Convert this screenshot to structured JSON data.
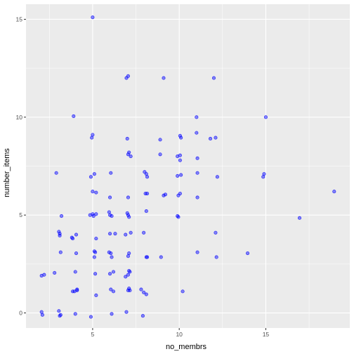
{
  "chart_data": {
    "type": "scatter",
    "title": "",
    "xlabel": "no_membrs",
    "ylabel": "number_items",
    "xlim": [
      1.15,
      19.85
    ],
    "ylim": [
      -0.77,
      15.77
    ],
    "x_ticks": [
      5,
      10,
      15
    ],
    "y_ticks": [
      0,
      5,
      10,
      15
    ],
    "grid": true,
    "legend": "none",
    "panel_color": "#ebebeb",
    "grid_color": "#ffffff",
    "point_color": "#0000ff",
    "points": [
      [
        5,
        15.1
      ],
      [
        7.05,
        12.1
      ],
      [
        6.95,
        12
      ],
      [
        9.1,
        12
      ],
      [
        12,
        12
      ],
      [
        3.9,
        10.05
      ],
      [
        11,
        10
      ],
      [
        15,
        10
      ],
      [
        5,
        9.1
      ],
      [
        4.95,
        8.95
      ],
      [
        7,
        8.9
      ],
      [
        8.9,
        8.85
      ],
      [
        10.05,
        9.05
      ],
      [
        10.1,
        8.95
      ],
      [
        11,
        9.2
      ],
      [
        11.8,
        8.9
      ],
      [
        12.1,
        8.95
      ],
      [
        7.1,
        8.2
      ],
      [
        7.05,
        8.1
      ],
      [
        7.2,
        8
      ],
      [
        8.9,
        8.1
      ],
      [
        9.9,
        8
      ],
      [
        10.05,
        8.05
      ],
      [
        10.05,
        7.8
      ],
      [
        11.05,
        7.9
      ],
      [
        2.9,
        7.15
      ],
      [
        4.9,
        6.95
      ],
      [
        5.1,
        7.1
      ],
      [
        6.05,
        7.15
      ],
      [
        8,
        7.2
      ],
      [
        8.1,
        7.1
      ],
      [
        8.15,
        6.95
      ],
      [
        9.9,
        7
      ],
      [
        10.1,
        7.05
      ],
      [
        11.05,
        7.15
      ],
      [
        12.2,
        6.95
      ],
      [
        14.85,
        6.95
      ],
      [
        14.9,
        7.1
      ],
      [
        5,
        6.2
      ],
      [
        5.2,
        6.15
      ],
      [
        6,
        5.9
      ],
      [
        7.05,
        5.9
      ],
      [
        8.05,
        6.1
      ],
      [
        8.15,
        6.1
      ],
      [
        9.1,
        6
      ],
      [
        9.2,
        6.05
      ],
      [
        9.95,
        6
      ],
      [
        10.05,
        6.1
      ],
      [
        11.05,
        5.9
      ],
      [
        18.95,
        6.2
      ],
      [
        3.2,
        4.95
      ],
      [
        4.85,
        5
      ],
      [
        5,
        5.05
      ],
      [
        5.05,
        4.95
      ],
      [
        5.2,
        5.05
      ],
      [
        5.95,
        5.15
      ],
      [
        6,
        5
      ],
      [
        6.1,
        4.95
      ],
      [
        7,
        5.1
      ],
      [
        7.05,
        5
      ],
      [
        7.1,
        4.9
      ],
      [
        8.1,
        5.2
      ],
      [
        9.9,
        4.95
      ],
      [
        9.95,
        4.9
      ],
      [
        16.95,
        4.85
      ],
      [
        3.05,
        4.15
      ],
      [
        3.1,
        4.05
      ],
      [
        3.1,
        3.95
      ],
      [
        3.8,
        3.85
      ],
      [
        3.85,
        3.8
      ],
      [
        4.05,
        4
      ],
      [
        5.2,
        3.8
      ],
      [
        6,
        4.05
      ],
      [
        6.3,
        4.05
      ],
      [
        6.9,
        4
      ],
      [
        7.2,
        4.1
      ],
      [
        7.95,
        4.1
      ],
      [
        12.1,
        4.1
      ],
      [
        3.15,
        3.1
      ],
      [
        4.05,
        3.05
      ],
      [
        5.1,
        3.15
      ],
      [
        5.15,
        3.1
      ],
      [
        5.95,
        3.1
      ],
      [
        6.05,
        3.05
      ],
      [
        7.1,
        3.05
      ],
      [
        11.05,
        3.1
      ],
      [
        13.95,
        3.05
      ],
      [
        5.1,
        2.85
      ],
      [
        6.1,
        2.85
      ],
      [
        7.05,
        2.9
      ],
      [
        8.1,
        2.85
      ],
      [
        8.15,
        2.85
      ],
      [
        8.95,
        2.85
      ],
      [
        12.15,
        2.85
      ],
      [
        2.8,
        2.05
      ],
      [
        4,
        2.1
      ],
      [
        5.15,
        2
      ],
      [
        6,
        2
      ],
      [
        6.2,
        2.1
      ],
      [
        7.1,
        2.15
      ],
      [
        7.15,
        2.1
      ],
      [
        7.05,
        1.95
      ],
      [
        6.9,
        1.85
      ],
      [
        2.05,
        1.9
      ],
      [
        2.2,
        1.95
      ],
      [
        3.95,
        1.1
      ],
      [
        4.1,
        1.2
      ],
      [
        4.1,
        1.15
      ],
      [
        3.85,
        1.1
      ],
      [
        6.05,
        1.2
      ],
      [
        6.2,
        1.1
      ],
      [
        7.1,
        1.25
      ],
      [
        7.05,
        1.15
      ],
      [
        7.15,
        1.15
      ],
      [
        7.8,
        1.2
      ],
      [
        7.95,
        1.05
      ],
      [
        8.1,
        0.95
      ],
      [
        10.2,
        1.1
      ],
      [
        5.2,
        0.9
      ],
      [
        2.05,
        0.05
      ],
      [
        2.1,
        -0.1
      ],
      [
        3.05,
        0.1
      ],
      [
        3.1,
        -0.15
      ],
      [
        3.15,
        -0.1
      ],
      [
        4,
        -0.05
      ],
      [
        4.9,
        -0.2
      ],
      [
        6.1,
        -0.05
      ],
      [
        6.95,
        0.05
      ],
      [
        7.9,
        -0.15
      ]
    ]
  }
}
